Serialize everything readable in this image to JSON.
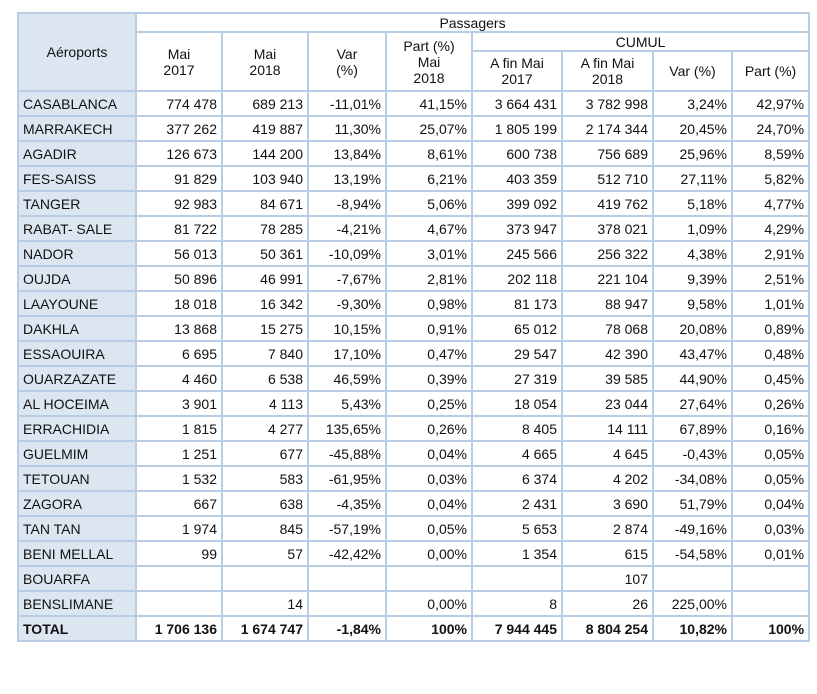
{
  "table": {
    "header": {
      "airports": "Aéroports",
      "passengers": "Passagers",
      "may2017": "Mai\n2017",
      "may2018": "Mai\n2018",
      "var": "Var\n(%)",
      "part": "Part (%)\nMai\n2018",
      "cumul": "CUMUL",
      "cum2017": "A fin Mai\n2017",
      "cum2018": "A fin Mai\n2018",
      "cumvar": "Var (%)",
      "cumpart": "Part (%)"
    },
    "rows": [
      [
        "CASABLANCA",
        "774 478",
        "689 213",
        "-11,01%",
        "41,15%",
        "3 664 431",
        "3 782 998",
        "3,24%",
        "42,97%"
      ],
      [
        "MARRAKECH",
        "377 262",
        "419 887",
        "11,30%",
        "25,07%",
        "1 805 199",
        "2 174 344",
        "20,45%",
        "24,70%"
      ],
      [
        "AGADIR",
        "126 673",
        "144 200",
        "13,84%",
        "8,61%",
        "600 738",
        "756 689",
        "25,96%",
        "8,59%"
      ],
      [
        "FES-SAISS",
        "91 829",
        "103 940",
        "13,19%",
        "6,21%",
        "403 359",
        "512 710",
        "27,11%",
        "5,82%"
      ],
      [
        "TANGER",
        "92 983",
        "84 671",
        "-8,94%",
        "5,06%",
        "399 092",
        "419 762",
        "5,18%",
        "4,77%"
      ],
      [
        "RABAT- SALE",
        "81 722",
        "78 285",
        "-4,21%",
        "4,67%",
        "373 947",
        "378 021",
        "1,09%",
        "4,29%"
      ],
      [
        "NADOR",
        "56 013",
        "50 361",
        "-10,09%",
        "3,01%",
        "245 566",
        "256 322",
        "4,38%",
        "2,91%"
      ],
      [
        "OUJDA",
        "50 896",
        "46 991",
        "-7,67%",
        "2,81%",
        "202 118",
        "221 104",
        "9,39%",
        "2,51%"
      ],
      [
        "LAAYOUNE",
        "18 018",
        "16 342",
        "-9,30%",
        "0,98%",
        "81 173",
        "88 947",
        "9,58%",
        "1,01%"
      ],
      [
        "DAKHLA",
        "13 868",
        "15 275",
        "10,15%",
        "0,91%",
        "65 012",
        "78 068",
        "20,08%",
        "0,89%"
      ],
      [
        "ESSAOUIRA",
        "6 695",
        "7 840",
        "17,10%",
        "0,47%",
        "29 547",
        "42 390",
        "43,47%",
        "0,48%"
      ],
      [
        "OUARZAZATE",
        "4 460",
        "6 538",
        "46,59%",
        "0,39%",
        "27 319",
        "39 585",
        "44,90%",
        "0,45%"
      ],
      [
        "AL HOCEIMA",
        "3 901",
        "4 113",
        "5,43%",
        "0,25%",
        "18 054",
        "23 044",
        "27,64%",
        "0,26%"
      ],
      [
        "ERRACHIDIA",
        "1 815",
        "4 277",
        "135,65%",
        "0,26%",
        "8 405",
        "14 111",
        "67,89%",
        "0,16%"
      ],
      [
        "GUELMIM",
        "1 251",
        "677",
        "-45,88%",
        "0,04%",
        "4 665",
        "4 645",
        "-0,43%",
        "0,05%"
      ],
      [
        "TETOUAN",
        "1 532",
        "583",
        "-61,95%",
        "0,03%",
        "6 374",
        "4 202",
        "-34,08%",
        "0,05%"
      ],
      [
        "ZAGORA",
        "667",
        "638",
        "-4,35%",
        "0,04%",
        "2 431",
        "3 690",
        "51,79%",
        "0,04%"
      ],
      [
        "TAN TAN",
        "1 974",
        "845",
        "-57,19%",
        "0,05%",
        "5 653",
        "2 874",
        "-49,16%",
        "0,03%"
      ],
      [
        "BENI MELLAL",
        "99",
        "57",
        "-42,42%",
        "0,00%",
        "1 354",
        "615",
        "-54,58%",
        "0,01%"
      ],
      [
        "BOUARFA",
        null,
        null,
        null,
        null,
        null,
        "107",
        null,
        null
      ],
      [
        "BENSLIMANE",
        null,
        "14",
        null,
        "0,00%",
        "8",
        "26",
        "225,00%",
        null
      ],
      [
        "TOTAL",
        "1 706 136",
        "1 674 747",
        "-1,84%",
        "100%",
        "7 944 445",
        "8 804 254",
        "10,82%",
        "100%"
      ]
    ]
  }
}
